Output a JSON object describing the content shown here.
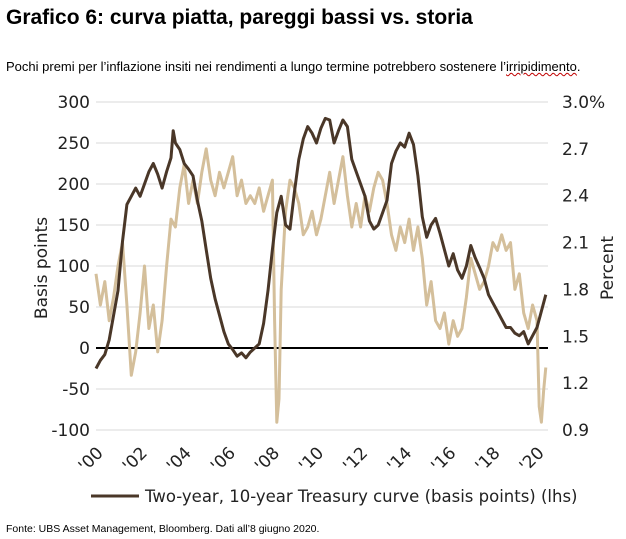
{
  "header": {
    "title": "Grafico 6: curva piatta, pareggi bassi vs. storia",
    "subtitle_main": "Pochi premi per l’inflazione insiti nei rendimenti a lungo termine potrebbero sostenere l’",
    "subtitle_wavy": "irripidimento",
    "subtitle_end": "."
  },
  "footer": {
    "source": "Fonte: UBS Asset Management, Bloomberg. Dati all’8 giugno 2020."
  },
  "chart_data": {
    "type": "line",
    "title": "",
    "ylabel_left": "Basis points",
    "ylabel_right": "Percent",
    "ylim_left": [
      -100,
      300
    ],
    "ylim_right": [
      0.9,
      3.0
    ],
    "yticks_left": [
      300,
      250,
      200,
      150,
      100,
      50,
      0,
      -50,
      -100
    ],
    "yticks_right": [
      "3.0%",
      "2.7",
      "2.4",
      "2.1",
      "1.8",
      "1.5",
      "1.2",
      "0.9"
    ],
    "yticks_right_values": [
      3.0,
      2.7,
      2.4,
      2.1,
      1.8,
      1.5,
      1.2,
      0.9
    ],
    "xlim": [
      2000.0,
      2020.5
    ],
    "xticks": [
      "'00",
      "'02",
      "'04",
      "'06",
      "'08",
      "'10",
      "'12",
      "'14",
      "'16",
      "'18",
      "'20"
    ],
    "xtick_values": [
      2000,
      2002,
      2004,
      2006,
      2008,
      2010,
      2012,
      2014,
      2016,
      2018,
      2020
    ],
    "grid": true,
    "legend_position": "bottom",
    "colors": {
      "curve": "#4a3728",
      "breakeven": "#d4bf9b",
      "zero_line": "#000000",
      "grid": "#d9d9d9"
    },
    "series": [
      {
        "name": "Two-year, 10-year Treasury curve (basis points) (lhs)",
        "axis": "left",
        "points": [
          [
            2000.0,
            -25
          ],
          [
            2000.2,
            -15
          ],
          [
            2000.4,
            -8
          ],
          [
            2000.6,
            10
          ],
          [
            2000.8,
            40
          ],
          [
            2001.0,
            70
          ],
          [
            2001.2,
            130
          ],
          [
            2001.4,
            175
          ],
          [
            2001.6,
            185
          ],
          [
            2001.8,
            195
          ],
          [
            2002.0,
            185
          ],
          [
            2002.2,
            200
          ],
          [
            2002.4,
            215
          ],
          [
            2002.6,
            225
          ],
          [
            2002.8,
            212
          ],
          [
            2003.0,
            195
          ],
          [
            2003.2,
            215
          ],
          [
            2003.4,
            232
          ],
          [
            2003.5,
            265
          ],
          [
            2003.6,
            250
          ],
          [
            2003.8,
            242
          ],
          [
            2004.0,
            225
          ],
          [
            2004.2,
            218
          ],
          [
            2004.4,
            210
          ],
          [
            2004.6,
            180
          ],
          [
            2004.8,
            155
          ],
          [
            2005.0,
            120
          ],
          [
            2005.2,
            85
          ],
          [
            2005.4,
            60
          ],
          [
            2005.6,
            40
          ],
          [
            2005.8,
            20
          ],
          [
            2006.0,
            5
          ],
          [
            2006.2,
            -2
          ],
          [
            2006.4,
            -10
          ],
          [
            2006.6,
            -6
          ],
          [
            2006.8,
            -12
          ],
          [
            2007.0,
            -5
          ],
          [
            2007.2,
            0
          ],
          [
            2007.4,
            5
          ],
          [
            2007.6,
            30
          ],
          [
            2007.8,
            70
          ],
          [
            2008.0,
            120
          ],
          [
            2008.2,
            165
          ],
          [
            2008.4,
            185
          ],
          [
            2008.6,
            150
          ],
          [
            2008.8,
            145
          ],
          [
            2009.0,
            190
          ],
          [
            2009.2,
            230
          ],
          [
            2009.4,
            255
          ],
          [
            2009.6,
            270
          ],
          [
            2009.8,
            262
          ],
          [
            2010.0,
            250
          ],
          [
            2010.2,
            268
          ],
          [
            2010.4,
            280
          ],
          [
            2010.6,
            278
          ],
          [
            2010.8,
            250
          ],
          [
            2011.0,
            265
          ],
          [
            2011.2,
            278
          ],
          [
            2011.4,
            270
          ],
          [
            2011.6,
            230
          ],
          [
            2011.8,
            215
          ],
          [
            2012.0,
            200
          ],
          [
            2012.2,
            185
          ],
          [
            2012.4,
            155
          ],
          [
            2012.6,
            145
          ],
          [
            2012.8,
            150
          ],
          [
            2013.0,
            165
          ],
          [
            2013.2,
            180
          ],
          [
            2013.4,
            225
          ],
          [
            2013.6,
            240
          ],
          [
            2013.8,
            250
          ],
          [
            2014.0,
            245
          ],
          [
            2014.2,
            262
          ],
          [
            2014.4,
            248
          ],
          [
            2014.6,
            210
          ],
          [
            2014.8,
            160
          ],
          [
            2015.0,
            135
          ],
          [
            2015.2,
            150
          ],
          [
            2015.4,
            158
          ],
          [
            2015.6,
            140
          ],
          [
            2015.8,
            120
          ],
          [
            2016.0,
            100
          ],
          [
            2016.2,
            115
          ],
          [
            2016.4,
            95
          ],
          [
            2016.6,
            85
          ],
          [
            2016.8,
            100
          ],
          [
            2017.0,
            125
          ],
          [
            2017.2,
            110
          ],
          [
            2017.4,
            98
          ],
          [
            2017.6,
            85
          ],
          [
            2017.8,
            65
          ],
          [
            2018.0,
            55
          ],
          [
            2018.2,
            45
          ],
          [
            2018.4,
            35
          ],
          [
            2018.6,
            25
          ],
          [
            2018.8,
            25
          ],
          [
            2019.0,
            18
          ],
          [
            2019.2,
            15
          ],
          [
            2019.4,
            20
          ],
          [
            2019.6,
            5
          ],
          [
            2019.8,
            15
          ],
          [
            2020.0,
            25
          ],
          [
            2020.2,
            45
          ],
          [
            2020.4,
            65
          ]
        ]
      },
      {
        "name": "",
        "axis": "right",
        "points": [
          [
            2000.0,
            1.9
          ],
          [
            2000.2,
            1.7
          ],
          [
            2000.4,
            1.85
          ],
          [
            2000.6,
            1.6
          ],
          [
            2000.8,
            1.75
          ],
          [
            2001.0,
            1.95
          ],
          [
            2001.2,
            2.1
          ],
          [
            2001.4,
            1.7
          ],
          [
            2001.6,
            1.25
          ],
          [
            2001.8,
            1.4
          ],
          [
            2002.0,
            1.65
          ],
          [
            2002.2,
            1.95
          ],
          [
            2002.4,
            1.55
          ],
          [
            2002.6,
            1.7
          ],
          [
            2002.8,
            1.4
          ],
          [
            2003.0,
            1.6
          ],
          [
            2003.2,
            1.95
          ],
          [
            2003.4,
            2.25
          ],
          [
            2003.6,
            2.2
          ],
          [
            2003.8,
            2.45
          ],
          [
            2004.0,
            2.6
          ],
          [
            2004.2,
            2.35
          ],
          [
            2004.4,
            2.5
          ],
          [
            2004.6,
            2.35
          ],
          [
            2004.8,
            2.55
          ],
          [
            2005.0,
            2.7
          ],
          [
            2005.2,
            2.5
          ],
          [
            2005.4,
            2.4
          ],
          [
            2005.6,
            2.55
          ],
          [
            2005.8,
            2.45
          ],
          [
            2006.0,
            2.55
          ],
          [
            2006.2,
            2.65
          ],
          [
            2006.4,
            2.4
          ],
          [
            2006.6,
            2.5
          ],
          [
            2006.8,
            2.35
          ],
          [
            2007.0,
            2.4
          ],
          [
            2007.2,
            2.35
          ],
          [
            2007.4,
            2.45
          ],
          [
            2007.6,
            2.3
          ],
          [
            2007.8,
            2.4
          ],
          [
            2008.0,
            2.5
          ],
          [
            2008.1,
            1.6
          ],
          [
            2008.2,
            0.95
          ],
          [
            2008.3,
            1.1
          ],
          [
            2008.4,
            1.8
          ],
          [
            2008.6,
            2.3
          ],
          [
            2008.8,
            2.5
          ],
          [
            2009.0,
            2.45
          ],
          [
            2009.2,
            2.35
          ],
          [
            2009.4,
            2.15
          ],
          [
            2009.6,
            2.2
          ],
          [
            2009.8,
            2.3
          ],
          [
            2010.0,
            2.15
          ],
          [
            2010.2,
            2.25
          ],
          [
            2010.4,
            2.4
          ],
          [
            2010.6,
            2.55
          ],
          [
            2010.8,
            2.35
          ],
          [
            2011.0,
            2.5
          ],
          [
            2011.2,
            2.65
          ],
          [
            2011.4,
            2.4
          ],
          [
            2011.6,
            2.2
          ],
          [
            2011.8,
            2.35
          ],
          [
            2012.0,
            2.2
          ],
          [
            2012.2,
            2.4
          ],
          [
            2012.4,
            2.3
          ],
          [
            2012.6,
            2.45
          ],
          [
            2012.8,
            2.55
          ],
          [
            2013.0,
            2.5
          ],
          [
            2013.2,
            2.35
          ],
          [
            2013.4,
            2.15
          ],
          [
            2013.6,
            2.05
          ],
          [
            2013.8,
            2.2
          ],
          [
            2014.0,
            2.1
          ],
          [
            2014.2,
            2.25
          ],
          [
            2014.4,
            2.05
          ],
          [
            2014.6,
            2.2
          ],
          [
            2014.8,
            2.0
          ],
          [
            2015.0,
            1.7
          ],
          [
            2015.2,
            1.85
          ],
          [
            2015.4,
            1.6
          ],
          [
            2015.6,
            1.55
          ],
          [
            2015.8,
            1.65
          ],
          [
            2016.0,
            1.45
          ],
          [
            2016.2,
            1.6
          ],
          [
            2016.4,
            1.5
          ],
          [
            2016.6,
            1.55
          ],
          [
            2016.8,
            1.75
          ],
          [
            2017.0,
            2.0
          ],
          [
            2017.2,
            1.9
          ],
          [
            2017.4,
            1.8
          ],
          [
            2017.6,
            1.85
          ],
          [
            2017.8,
            1.95
          ],
          [
            2018.0,
            2.1
          ],
          [
            2018.2,
            2.05
          ],
          [
            2018.4,
            2.15
          ],
          [
            2018.6,
            2.05
          ],
          [
            2018.8,
            2.1
          ],
          [
            2019.0,
            1.8
          ],
          [
            2019.2,
            1.9
          ],
          [
            2019.4,
            1.65
          ],
          [
            2019.6,
            1.55
          ],
          [
            2019.8,
            1.7
          ],
          [
            2020.0,
            1.6
          ],
          [
            2020.1,
            1.05
          ],
          [
            2020.2,
            0.95
          ],
          [
            2020.3,
            1.15
          ],
          [
            2020.4,
            1.3
          ]
        ]
      }
    ]
  }
}
